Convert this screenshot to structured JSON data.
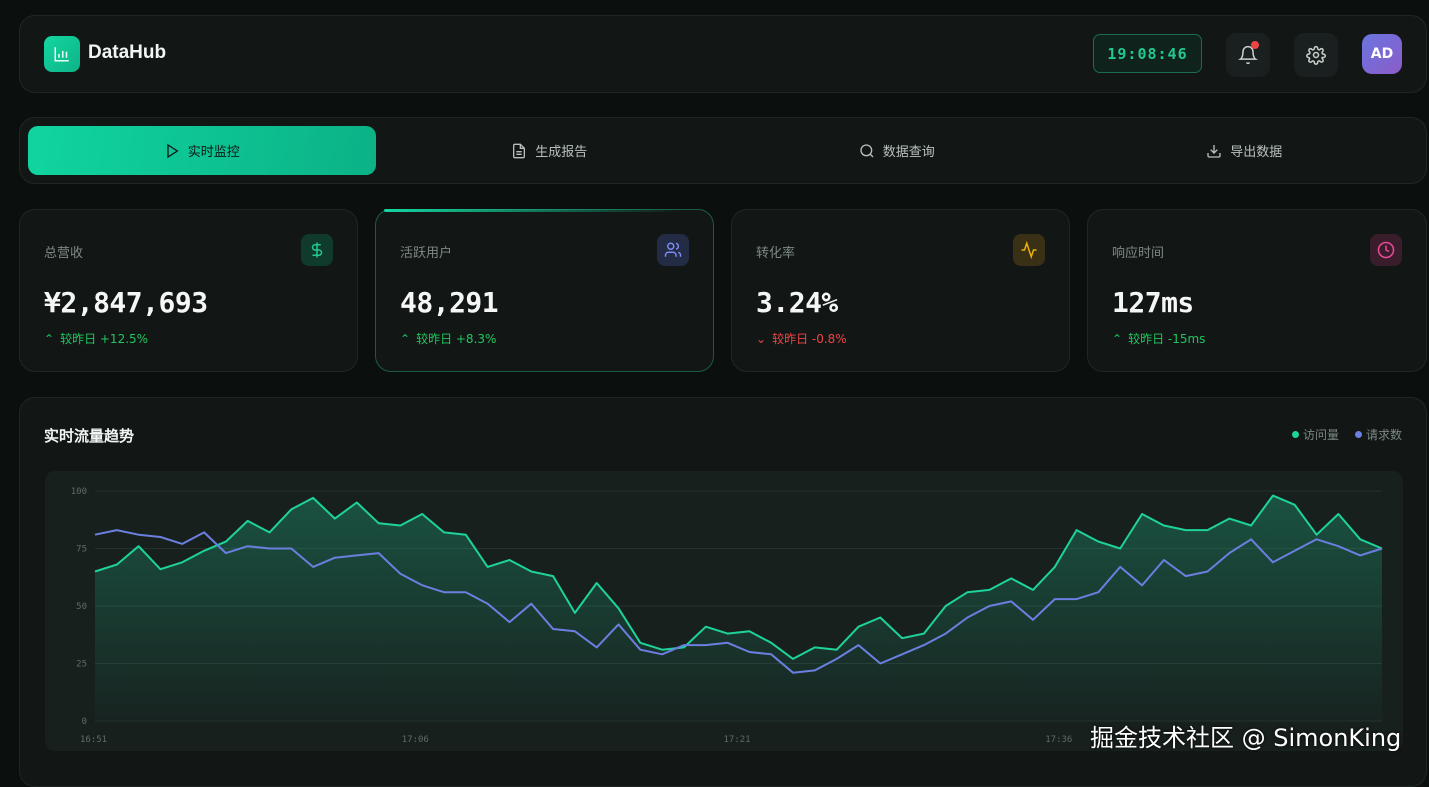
{
  "header": {
    "brand": "DataHub",
    "clock": "19:08:46",
    "avatar": "AD",
    "icons": {
      "logo": "bar-chart-icon",
      "bell": "bell-icon",
      "settings": "gear-icon"
    }
  },
  "tabs": [
    {
      "label": "实时监控",
      "icon": "play-icon",
      "active": true
    },
    {
      "label": "生成报告",
      "icon": "document-icon"
    },
    {
      "label": "数据查询",
      "icon": "search-icon"
    },
    {
      "label": "导出数据",
      "icon": "download-icon"
    }
  ],
  "cards": [
    {
      "label": "总营收",
      "value": "¥2,847,693",
      "delta": "较昨日 +12.5%",
      "trend": "up",
      "icon": "dollar-icon",
      "color": "#22c98e"
    },
    {
      "label": "活跃用户",
      "value": "48,291",
      "delta": "较昨日 +8.3%",
      "trend": "up",
      "icon": "users-icon",
      "color": "#7c8cf0"
    },
    {
      "label": "转化率",
      "value": "3.24%",
      "delta": "较昨日 -0.8%",
      "trend": "down",
      "icon": "activity-icon",
      "color": "#eab308"
    },
    {
      "label": "响应时间",
      "value": "127ms",
      "delta": "较昨日 -15ms",
      "trend": "up",
      "icon": "clock-icon",
      "color": "#ec4899"
    }
  ],
  "chart_panel": {
    "title": "实时流量趋势"
  },
  "chart_data": {
    "type": "area",
    "title": "实时流量趋势",
    "ylim": [
      0,
      100
    ],
    "yticks": [
      "100",
      "75",
      "50",
      "25",
      "0"
    ],
    "xtick_labels": [
      "16:51",
      "17:06",
      "17:21",
      "17:36"
    ],
    "grid": true,
    "legend_position": "top-right",
    "series": [
      {
        "name": "访问量",
        "color": "#1ed39a",
        "values": [
          65,
          68,
          76,
          66,
          69,
          74,
          78,
          87,
          82,
          92,
          97,
          88,
          95,
          86,
          85,
          90,
          82,
          81,
          67,
          70,
          65,
          63,
          47,
          60,
          49,
          34,
          31,
          32,
          41,
          38,
          39,
          34,
          27,
          32,
          31,
          41,
          45,
          36,
          38,
          50,
          56,
          57,
          62,
          57,
          67,
          83,
          78,
          75,
          90,
          85,
          83,
          83,
          88,
          85,
          98,
          94,
          81,
          90,
          79,
          75
        ]
      },
      {
        "name": "请求数",
        "color": "#6b7fe0",
        "values": [
          81,
          83,
          81,
          80,
          77,
          82,
          73,
          76,
          75,
          75,
          67,
          71,
          72,
          73,
          64,
          59,
          56,
          56,
          51,
          43,
          51,
          40,
          39,
          32,
          42,
          31,
          29,
          33,
          33,
          34,
          30,
          29,
          21,
          22,
          27,
          33,
          25,
          29,
          33,
          38,
          45,
          50,
          52,
          44,
          53,
          53,
          56,
          67,
          59,
          70,
          63,
          65,
          73,
          79,
          69,
          74,
          79,
          76,
          72,
          75
        ]
      }
    ]
  },
  "watermark": "掘金技术社区 @ SimonKing"
}
